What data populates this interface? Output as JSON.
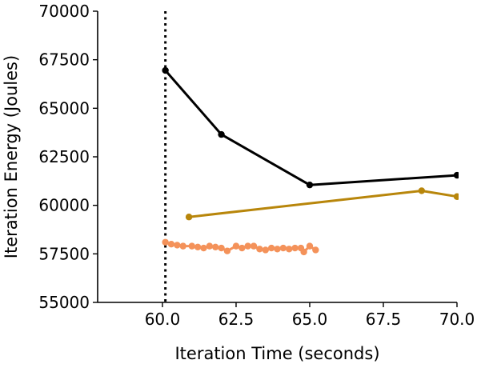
{
  "chart_data": {
    "type": "line",
    "title": "",
    "xlabel": "Iteration Time (seconds)",
    "ylabel": "Iteration Energy (Joules)",
    "xlim": [
      57.8,
      70.0
    ],
    "ylim": [
      55000,
      70000
    ],
    "x_ticks": [
      60.0,
      62.5,
      65.0,
      67.5,
      70.0
    ],
    "x_tick_labels": [
      "60.0",
      "62.5",
      "65.0",
      "67.5",
      "70.0"
    ],
    "y_ticks": [
      55000,
      57500,
      60000,
      62500,
      65000,
      67500,
      70000
    ],
    "y_tick_labels": [
      "55000",
      "57500",
      "60000",
      "62500",
      "65000",
      "67500",
      "70000"
    ],
    "grid": false,
    "legend": "none",
    "reference_lines": [
      {
        "orientation": "vertical",
        "x": 60.1,
        "style": "dotted",
        "color": "#000000"
      }
    ],
    "series": [
      {
        "color": "#000000",
        "marker": "circle",
        "x": [
          60.1,
          62.0,
          65.0,
          70.0
        ],
        "y": [
          66950,
          63650,
          61050,
          61550
        ]
      },
      {
        "color": "#b8860b",
        "marker": "circle",
        "x": [
          60.9,
          68.8,
          70.0
        ],
        "y": [
          59400,
          60750,
          60450
        ]
      },
      {
        "color": "#f4925a",
        "marker": "circle",
        "x": [
          60.1,
          60.3,
          60.5,
          60.7,
          61.0,
          61.2,
          61.4,
          61.6,
          61.8,
          62.0,
          62.2,
          62.5,
          62.7,
          62.9,
          63.1,
          63.3,
          63.5,
          63.7,
          63.9,
          64.1,
          64.3,
          64.5,
          64.7,
          64.8,
          65.0,
          65.2
        ],
        "y": [
          58100,
          58000,
          57950,
          57900,
          57900,
          57850,
          57800,
          57900,
          57850,
          57800,
          57650,
          57900,
          57800,
          57900,
          57900,
          57750,
          57700,
          57800,
          57750,
          57800,
          57750,
          57800,
          57800,
          57600,
          57900,
          57700
        ]
      }
    ]
  }
}
